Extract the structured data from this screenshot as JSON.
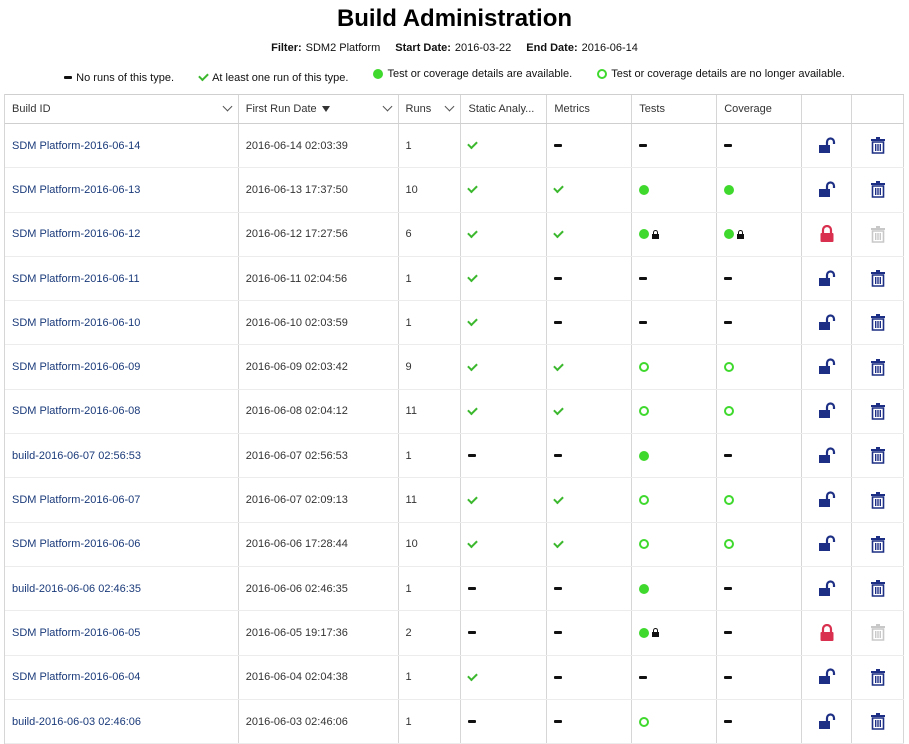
{
  "title": "Build Administration",
  "filter": {
    "filter_label": "Filter:",
    "filter_value": "SDM2 Platform",
    "start_label": "Start Date:",
    "start_value": "2016-03-22",
    "end_label": "End Date:",
    "end_value": "2016-06-14"
  },
  "legend": {
    "none": "No runs of this type.",
    "atleast": "At least one run of this type.",
    "available": "Test or coverage details are available.",
    "gone": "Test or coverage details are no longer available."
  },
  "columns": {
    "build_id": "Build ID",
    "first_run": "First Run Date",
    "runs": "Runs",
    "static": "Static Analy...",
    "metrics": "Metrics",
    "tests": "Tests",
    "coverage": "Coverage"
  },
  "colors": {
    "link": "#1a3a7a",
    "green": "#3fd92e",
    "check": "#3cb82e",
    "lock_open": "#1c2f84",
    "lock_closed": "#d9304f",
    "trash": "#1c2f84",
    "trash_disabled": "#c8c8c8"
  },
  "rows": [
    {
      "build_id": "SDM Platform-2016-06-14",
      "first_run": "2016-06-14 02:03:39",
      "runs": "1",
      "static": "check",
      "metrics": "dash",
      "tests": "dash",
      "coverage": "dash",
      "locked": false
    },
    {
      "build_id": "SDM Platform-2016-06-13",
      "first_run": "2016-06-13 17:37:50",
      "runs": "10",
      "static": "check",
      "metrics": "check",
      "tests": "dot",
      "coverage": "dot",
      "locked": false
    },
    {
      "build_id": "SDM Platform-2016-06-12",
      "first_run": "2016-06-12 17:27:56",
      "runs": "6",
      "static": "check",
      "metrics": "check",
      "tests": "dot-lock",
      "coverage": "dot-lock",
      "locked": true
    },
    {
      "build_id": "SDM Platform-2016-06-11",
      "first_run": "2016-06-11 02:04:56",
      "runs": "1",
      "static": "check",
      "metrics": "dash",
      "tests": "dash",
      "coverage": "dash",
      "locked": false
    },
    {
      "build_id": "SDM Platform-2016-06-10",
      "first_run": "2016-06-10 02:03:59",
      "runs": "1",
      "static": "check",
      "metrics": "dash",
      "tests": "dash",
      "coverage": "dash",
      "locked": false
    },
    {
      "build_id": "SDM Platform-2016-06-09",
      "first_run": "2016-06-09 02:03:42",
      "runs": "9",
      "static": "check",
      "metrics": "check",
      "tests": "ring",
      "coverage": "ring",
      "locked": false
    },
    {
      "build_id": "SDM Platform-2016-06-08",
      "first_run": "2016-06-08 02:04:12",
      "runs": "11",
      "static": "check",
      "metrics": "check",
      "tests": "ring",
      "coverage": "ring",
      "locked": false
    },
    {
      "build_id": "build-2016-06-07 02:56:53",
      "first_run": "2016-06-07 02:56:53",
      "runs": "1",
      "static": "dash",
      "metrics": "dash",
      "tests": "dot",
      "coverage": "dash",
      "locked": false
    },
    {
      "build_id": "SDM Platform-2016-06-07",
      "first_run": "2016-06-07 02:09:13",
      "runs": "11",
      "static": "check",
      "metrics": "check",
      "tests": "ring",
      "coverage": "ring",
      "locked": false
    },
    {
      "build_id": "SDM Platform-2016-06-06",
      "first_run": "2016-06-06 17:28:44",
      "runs": "10",
      "static": "check",
      "metrics": "check",
      "tests": "ring",
      "coverage": "ring",
      "locked": false
    },
    {
      "build_id": "build-2016-06-06 02:46:35",
      "first_run": "2016-06-06 02:46:35",
      "runs": "1",
      "static": "dash",
      "metrics": "dash",
      "tests": "dot",
      "coverage": "dash",
      "locked": false
    },
    {
      "build_id": "SDM Platform-2016-06-05",
      "first_run": "2016-06-05 19:17:36",
      "runs": "2",
      "static": "dash",
      "metrics": "dash",
      "tests": "dot-lock",
      "coverage": "dash",
      "locked": true
    },
    {
      "build_id": "SDM Platform-2016-06-04",
      "first_run": "2016-06-04 02:04:38",
      "runs": "1",
      "static": "check",
      "metrics": "dash",
      "tests": "dash",
      "coverage": "dash",
      "locked": false
    },
    {
      "build_id": "build-2016-06-03 02:46:06",
      "first_run": "2016-06-03 02:46:06",
      "runs": "1",
      "static": "dash",
      "metrics": "dash",
      "tests": "ring",
      "coverage": "dash",
      "locked": false
    }
  ]
}
